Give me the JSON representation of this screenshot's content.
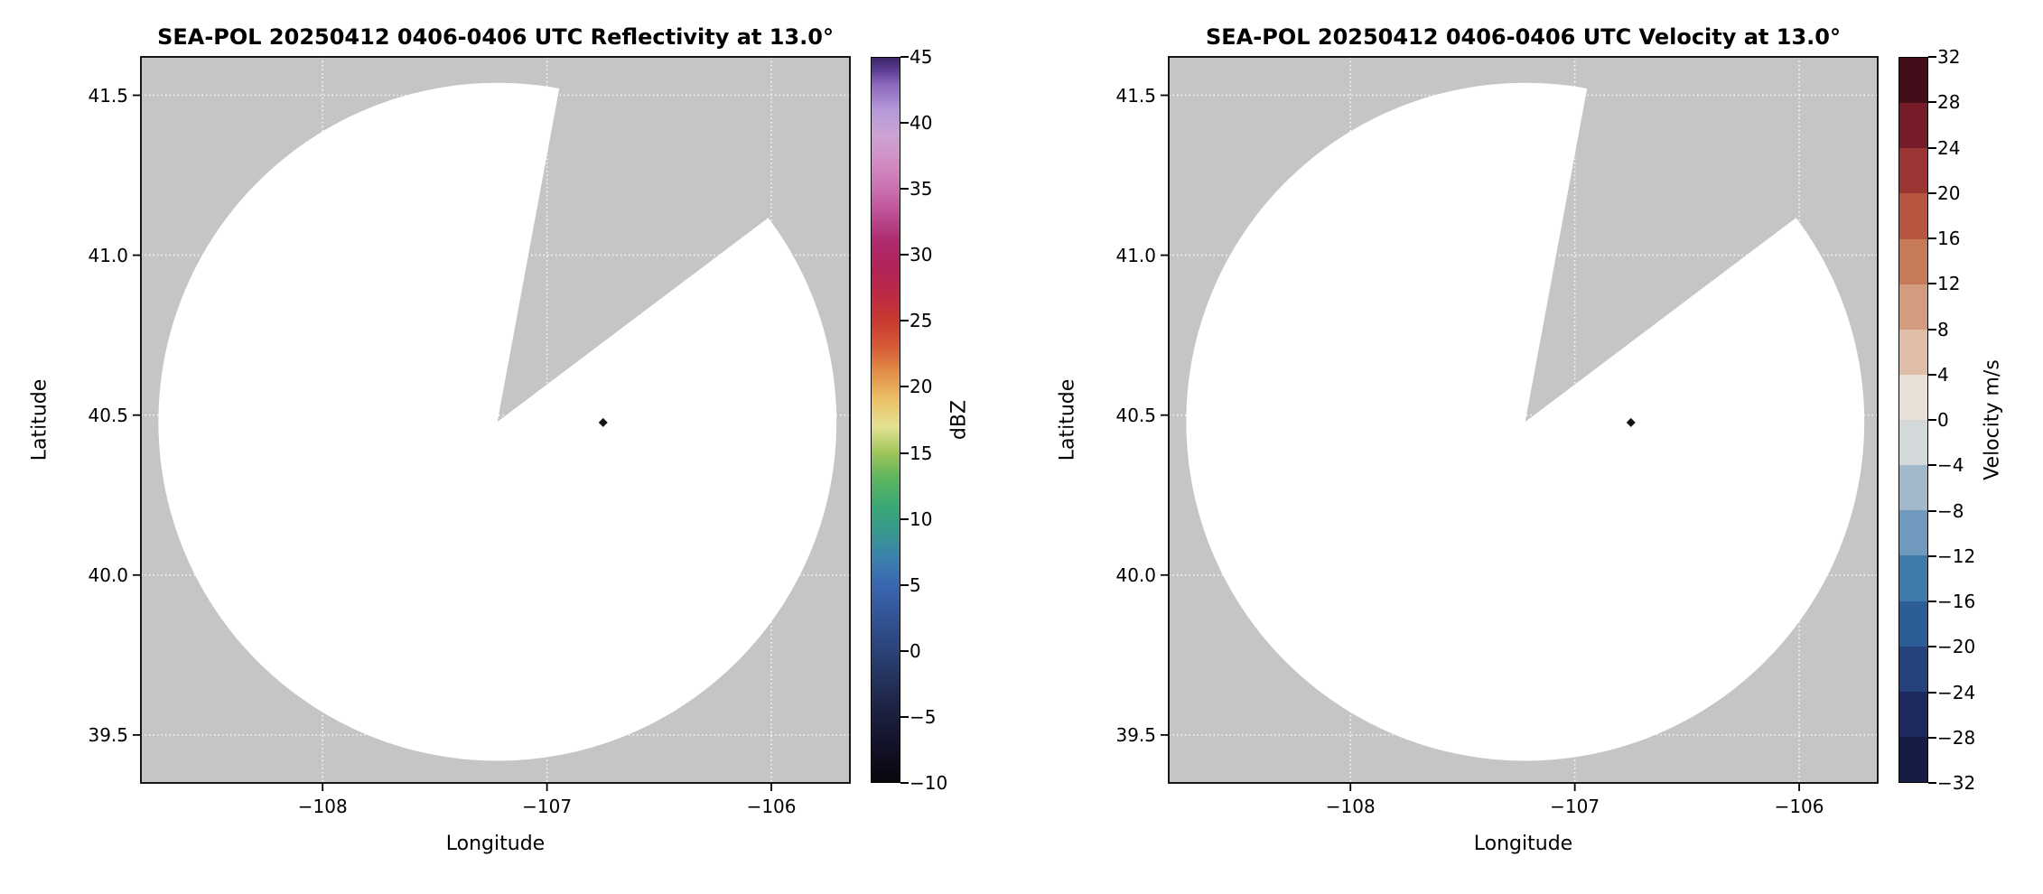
{
  "colors": {
    "background": "#ffffff",
    "mask": "#c5c5c5",
    "scan": "#ffffff",
    "grid": "#ffffff",
    "frame": "#000000",
    "marker": "#141414"
  },
  "radar": {
    "center_lon": -107.221,
    "center_lat": 40.479,
    "radius_deg_lat": 1.06,
    "gap_azimuth_start_deg": 10.5,
    "gap_azimuth_end_deg": 53.0,
    "coverage_note": "white disk = scanned area, gray = no data; wedge between azimuths 10.5 and 53 degrees is missing"
  },
  "chart_data": [
    {
      "type": "heatmap",
      "title": "SEA-POL 20250412 0406-0406 UTC Reflectivity at 13.0°",
      "xlabel": "Longitude",
      "ylabel": "Latitude",
      "xlim": [
        -108.81,
        -105.65
      ],
      "ylim": [
        39.35,
        41.62
      ],
      "xticks": [
        -108,
        -107,
        -106
      ],
      "xtick_labels": [
        "−108",
        "−107",
        "−106"
      ],
      "yticks": [
        39.5,
        40.0,
        40.5,
        41.0,
        41.5
      ],
      "ytick_labels": [
        "39.5",
        "40.0",
        "40.5",
        "41.0",
        "41.5"
      ],
      "points": [
        {
          "lon": -106.75,
          "lat": 40.477,
          "label": "single dark echo (diamond) near (-106.75, 40.48)"
        }
      ],
      "colorbar": {
        "label": "dBZ",
        "kind": "continuous",
        "vmin": -10,
        "vmax": 45,
        "ticks": [
          45,
          40,
          35,
          30,
          25,
          20,
          15,
          10,
          5,
          0,
          -5,
          -10
        ],
        "tick_labels": [
          "45",
          "40",
          "35",
          "30",
          "25",
          "20",
          "15",
          "10",
          "5",
          "0",
          "−5",
          "−10"
        ],
        "stops": [
          {
            "v": -10,
            "c": "#08070d"
          },
          {
            "v": -7,
            "c": "#14132b"
          },
          {
            "v": -4,
            "c": "#1e2547"
          },
          {
            "v": -1,
            "c": "#283c6b"
          },
          {
            "v": 2,
            "c": "#30508f"
          },
          {
            "v": 5,
            "c": "#3a66b0"
          },
          {
            "v": 7,
            "c": "#3b81ad"
          },
          {
            "v": 9,
            "c": "#38988f"
          },
          {
            "v": 11,
            "c": "#3ba874"
          },
          {
            "v": 13,
            "c": "#5bb55f"
          },
          {
            "v": 15,
            "c": "#9ec45a"
          },
          {
            "v": 17,
            "c": "#e4e292"
          },
          {
            "v": 19,
            "c": "#ecc167"
          },
          {
            "v": 21,
            "c": "#e2924a"
          },
          {
            "v": 23,
            "c": "#d55c36"
          },
          {
            "v": 25,
            "c": "#c83a30"
          },
          {
            "v": 27,
            "c": "#bd2a44"
          },
          {
            "v": 29,
            "c": "#b02358"
          },
          {
            "v": 31,
            "c": "#ad2a6c"
          },
          {
            "v": 33,
            "c": "#bb4d92"
          },
          {
            "v": 35,
            "c": "#ca70af"
          },
          {
            "v": 37,
            "c": "#d18cc2"
          },
          {
            "v": 39,
            "c": "#cda3d4"
          },
          {
            "v": 41,
            "c": "#b49ad8"
          },
          {
            "v": 43,
            "c": "#8a67bd"
          },
          {
            "v": 44,
            "c": "#5e3f97"
          },
          {
            "v": 45,
            "c": "#3c2566"
          }
        ]
      }
    },
    {
      "type": "heatmap",
      "title": "SEA-POL 20250412 0406-0406 UTC Velocity at 13.0°",
      "xlabel": "Longitude",
      "ylabel": "Latitude",
      "xlim": [
        -108.81,
        -105.65
      ],
      "ylim": [
        39.35,
        41.62
      ],
      "xticks": [
        -108,
        -107,
        -106
      ],
      "xtick_labels": [
        "−108",
        "−107",
        "−106"
      ],
      "yticks": [
        39.5,
        40.0,
        40.5,
        41.0,
        41.5
      ],
      "ytick_labels": [
        "39.5",
        "40.0",
        "40.5",
        "41.0",
        "41.5"
      ],
      "points": [
        {
          "lon": -106.75,
          "lat": 40.477,
          "label": "single dark echo (diamond) near (-106.75, 40.48)"
        }
      ],
      "colorbar": {
        "label": "Velocity m/s",
        "kind": "discrete",
        "vmin": -32,
        "vmax": 32,
        "ticks": [
          32,
          28,
          24,
          20,
          16,
          12,
          8,
          4,
          0,
          -4,
          -8,
          -12,
          -16,
          -20,
          -24,
          -28,
          -32
        ],
        "tick_labels": [
          "32",
          "28",
          "24",
          "20",
          "16",
          "12",
          "8",
          "4",
          "0",
          "−4",
          "−8",
          "−12",
          "−16",
          "−20",
          "−24",
          "−28",
          "−32"
        ],
        "bins": [
          {
            "from": -32,
            "to": -28,
            "c": "#151d44"
          },
          {
            "from": -28,
            "to": -24,
            "c": "#1e2a5e"
          },
          {
            "from": -24,
            "to": -20,
            "c": "#25427c"
          },
          {
            "from": -20,
            "to": -16,
            "c": "#2d5d96"
          },
          {
            "from": -16,
            "to": -12,
            "c": "#3f7aab"
          },
          {
            "from": -12,
            "to": -8,
            "c": "#6f9abd"
          },
          {
            "from": -8,
            "to": -4,
            "c": "#a2b9cb"
          },
          {
            "from": -4,
            "to": 0,
            "c": "#d3d9db"
          },
          {
            "from": 0,
            "to": 4,
            "c": "#e9e0d8"
          },
          {
            "from": 4,
            "to": 8,
            "c": "#e0bda7"
          },
          {
            "from": 8,
            "to": 12,
            "c": "#d49c7e"
          },
          {
            "from": 12,
            "to": 16,
            "c": "#c67a58"
          },
          {
            "from": 16,
            "to": 20,
            "c": "#b65640"
          },
          {
            "from": 20,
            "to": 24,
            "c": "#9c3634"
          },
          {
            "from": 24,
            "to": 28,
            "c": "#761b28"
          },
          {
            "from": 28,
            "to": 32,
            "c": "#430d19"
          }
        ]
      }
    }
  ]
}
